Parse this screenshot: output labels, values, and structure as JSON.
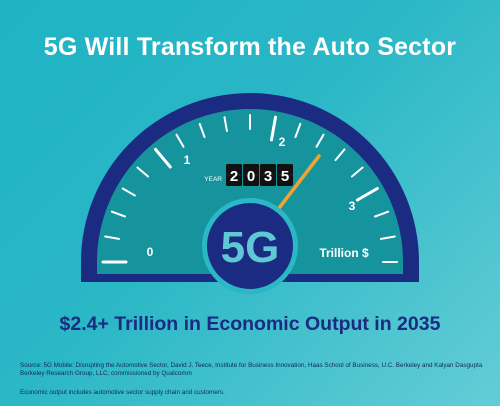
{
  "title": "5G Will Transform the Auto Sector",
  "gauge": {
    "scale_labels": [
      "0",
      "1",
      "2",
      "3"
    ],
    "year_label": "YEAR",
    "year_digits": [
      "2",
      "0",
      "3",
      "5"
    ],
    "center_label": "5G",
    "unit_label": "Trillion $",
    "needle_value": 2.4,
    "scale_max": 3.6
  },
  "headline": "$2.4+ Trillion in Economic Output in 2035",
  "source": "Source: 5G Mobile: Disrupting the Automotive Sector, David J. Teece, Institute for Business Innovation, Haas School of Business, U.C. Berkeley and Kalyan Dasgupta Berkeley Research Group, LLC, commissioned by Qualcomm",
  "footnote": "Economic output includes automotive sector supply chain and customers.",
  "colors": {
    "background": "#2ab7c6",
    "gauge_outer": "#1b2b82",
    "gauge_face": "#15949e",
    "needle": "#f0a430",
    "title": "#ffffff",
    "headline": "#1b2b82"
  }
}
